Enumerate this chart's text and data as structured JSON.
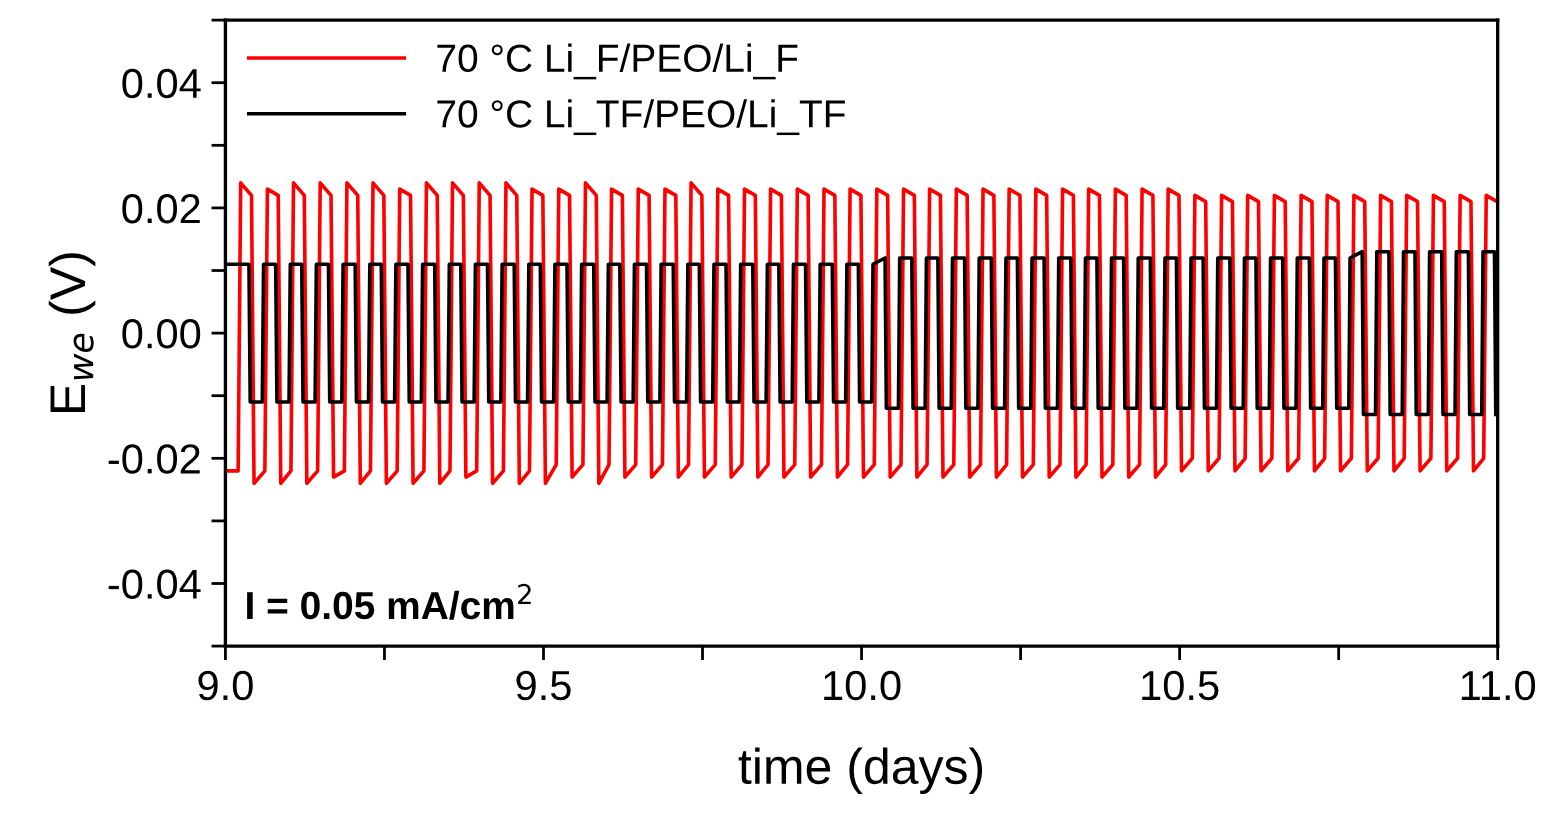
{
  "chart_data": {
    "type": "line",
    "xlabel": "time (days)",
    "ylabel": "E$_{we}$ (V)",
    "xlim": [
      9.0,
      11.0
    ],
    "ylim": [
      -0.05,
      0.05
    ],
    "xticks": [
      {
        "value": 9.0,
        "label": "9.0"
      },
      {
        "value": 9.25,
        "label": null
      },
      {
        "value": 9.5,
        "label": "9.5"
      },
      {
        "value": 9.75,
        "label": null
      },
      {
        "value": 10.0,
        "label": "10.0"
      },
      {
        "value": 10.25,
        "label": null
      },
      {
        "value": 10.5,
        "label": "10.5"
      },
      {
        "value": 10.75,
        "label": null
      },
      {
        "value": 11.0,
        "label": "11.0"
      }
    ],
    "yticks": [
      {
        "value": -0.05,
        "label": null
      },
      {
        "value": -0.04,
        "label": "-0.04"
      },
      {
        "value": -0.03,
        "label": null
      },
      {
        "value": -0.02,
        "label": "-0.02"
      },
      {
        "value": -0.01,
        "label": null
      },
      {
        "value": 0.0,
        "label": "0.00"
      },
      {
        "value": 0.01,
        "label": null
      },
      {
        "value": 0.02,
        "label": "0.02"
      },
      {
        "value": 0.03,
        "label": null
      },
      {
        "value": 0.04,
        "label": "0.04"
      },
      {
        "value": 0.05,
        "label": null
      }
    ],
    "grid": false,
    "legend": "top left",
    "marker": "none",
    "line_style": "solid",
    "annotations": [
      "I = 0.05 mA/cm$^{2}$"
    ],
    "series": [
      {
        "name": "70 °C Li_F/PEO/Li_F",
        "color": "#ff0000",
        "x": [
          9.0,
          9.02,
          9.024,
          9.041,
          9.045,
          9.062,
          9.066,
          9.083,
          9.087,
          9.103,
          9.107,
          9.124,
          9.128,
          9.145,
          9.149,
          9.166,
          9.17,
          9.187,
          9.191,
          9.208,
          9.212,
          9.228,
          9.232,
          9.249,
          9.253,
          9.27,
          9.274,
          9.291,
          9.295,
          9.312,
          9.316,
          9.333,
          9.337,
          9.353,
          9.357,
          9.374,
          9.378,
          9.395,
          9.399,
          9.416,
          9.42,
          9.437,
          9.441,
          9.458,
          9.462,
          9.478,
          9.482,
          9.499,
          9.503,
          9.52,
          9.524,
          9.541,
          9.545,
          9.562,
          9.566,
          9.583,
          9.587,
          9.603,
          9.607,
          9.624,
          9.628,
          9.645,
          9.649,
          9.666,
          9.67,
          9.687,
          9.691,
          9.708,
          9.712,
          9.728,
          9.732,
          9.749,
          9.753,
          9.77,
          9.774,
          9.791,
          9.795,
          9.812,
          9.816,
          9.833,
          9.837,
          9.853,
          9.857,
          9.874,
          9.878,
          9.895,
          9.899,
          9.916,
          9.92,
          9.937,
          9.941,
          9.958,
          9.962,
          9.978,
          9.982,
          9.999,
          10.003,
          10.02,
          10.024,
          10.041,
          10.045,
          10.062,
          10.066,
          10.083,
          10.087,
          10.103,
          10.107,
          10.124,
          10.128,
          10.145,
          10.149,
          10.166,
          10.17,
          10.187,
          10.191,
          10.208,
          10.212,
          10.228,
          10.232,
          10.249,
          10.253,
          10.27,
          10.274,
          10.291,
          10.295,
          10.312,
          10.316,
          10.333,
          10.337,
          10.353,
          10.357,
          10.374,
          10.378,
          10.395,
          10.399,
          10.416,
          10.42,
          10.437,
          10.441,
          10.458,
          10.462,
          10.478,
          10.482,
          10.499,
          10.503,
          10.52,
          10.524,
          10.541,
          10.545,
          10.562,
          10.566,
          10.583,
          10.587,
          10.603,
          10.607,
          10.624,
          10.628,
          10.645,
          10.649,
          10.666,
          10.67,
          10.687,
          10.691,
          10.708,
          10.712,
          10.728,
          10.732,
          10.749,
          10.753,
          10.77,
          10.774,
          10.791,
          10.795,
          10.812,
          10.816,
          10.833,
          10.837,
          10.853,
          10.857,
          10.874,
          10.878,
          10.895,
          10.899,
          10.916,
          10.92,
          10.937,
          10.941,
          10.958,
          10.962,
          10.978,
          10.982,
          10.999
        ],
        "values": [
          -0.022,
          -0.022,
          0.024,
          0.022,
          -0.024,
          -0.022,
          0.023,
          0.022,
          -0.024,
          -0.022,
          0.024,
          0.022,
          -0.024,
          -0.022,
          0.024,
          0.022,
          -0.023,
          -0.022,
          0.024,
          0.022,
          -0.024,
          -0.022,
          0.024,
          0.022,
          -0.024,
          -0.022,
          0.023,
          0.022,
          -0.024,
          -0.022,
          0.024,
          0.022,
          -0.024,
          -0.022,
          0.024,
          0.022,
          -0.023,
          -0.022,
          0.024,
          0.022,
          -0.024,
          -0.022,
          0.024,
          0.022,
          -0.024,
          -0.022,
          0.023,
          0.022,
          -0.024,
          -0.021,
          0.023,
          0.022,
          -0.023,
          -0.021,
          0.024,
          0.022,
          -0.024,
          -0.021,
          0.023,
          0.022,
          -0.023,
          -0.021,
          0.023,
          0.022,
          -0.023,
          -0.021,
          0.023,
          0.022,
          -0.023,
          -0.021,
          0.024,
          0.022,
          -0.023,
          -0.021,
          0.023,
          0.022,
          -0.023,
          -0.021,
          0.023,
          0.022,
          -0.023,
          -0.021,
          0.023,
          0.022,
          -0.023,
          -0.021,
          0.023,
          0.022,
          -0.023,
          -0.021,
          0.023,
          0.022,
          -0.023,
          -0.021,
          0.023,
          0.022,
          -0.023,
          -0.021,
          0.023,
          0.022,
          -0.023,
          -0.021,
          0.023,
          0.022,
          -0.023,
          -0.021,
          0.023,
          0.022,
          -0.023,
          -0.021,
          0.023,
          0.022,
          -0.023,
          -0.021,
          0.023,
          0.022,
          -0.023,
          -0.021,
          0.023,
          0.022,
          -0.023,
          -0.021,
          0.023,
          0.022,
          -0.023,
          -0.021,
          0.023,
          0.022,
          -0.023,
          -0.021,
          0.023,
          0.022,
          -0.023,
          -0.021,
          0.023,
          0.022,
          -0.023,
          -0.021,
          0.023,
          0.022,
          -0.023,
          -0.021,
          0.023,
          0.022,
          -0.022,
          -0.02,
          0.022,
          0.021,
          -0.022,
          -0.02,
          0.022,
          0.021,
          -0.022,
          -0.02,
          0.022,
          0.021,
          -0.022,
          -0.02,
          0.022,
          0.021,
          -0.022,
          -0.02,
          0.022,
          0.021,
          -0.022,
          -0.02,
          0.022,
          0.021,
          -0.022,
          -0.02,
          0.022,
          0.021,
          -0.022,
          -0.02,
          0.022,
          0.021,
          -0.022,
          -0.02,
          0.022,
          0.021,
          -0.022,
          -0.02,
          0.022,
          0.021,
          -0.022,
          -0.02,
          0.022,
          0.021,
          -0.022,
          -0.02,
          0.022,
          0.021
        ]
      },
      {
        "name": "70 °C Li_TF/PEO/Li_TF",
        "color": "#000000",
        "x": [
          9.0,
          9.037,
          9.039,
          9.058,
          9.06,
          9.079,
          9.081,
          9.1,
          9.102,
          9.12,
          9.122,
          9.141,
          9.143,
          9.162,
          9.164,
          9.183,
          9.185,
          9.204,
          9.206,
          9.225,
          9.227,
          9.245,
          9.247,
          9.266,
          9.268,
          9.287,
          9.289,
          9.308,
          9.31,
          9.329,
          9.331,
          9.35,
          9.352,
          9.37,
          9.372,
          9.391,
          9.393,
          9.412,
          9.414,
          9.433,
          9.435,
          9.454,
          9.456,
          9.475,
          9.477,
          9.495,
          9.497,
          9.516,
          9.518,
          9.537,
          9.539,
          9.558,
          9.56,
          9.579,
          9.581,
          9.6,
          9.602,
          9.62,
          9.622,
          9.641,
          9.643,
          9.662,
          9.664,
          9.683,
          9.685,
          9.704,
          9.706,
          9.725,
          9.727,
          9.745,
          9.747,
          9.766,
          9.768,
          9.787,
          9.789,
          9.808,
          9.81,
          9.829,
          9.831,
          9.85,
          9.852,
          9.87,
          9.872,
          9.891,
          9.893,
          9.912,
          9.914,
          9.933,
          9.935,
          9.954,
          9.956,
          9.975,
          9.977,
          9.995,
          9.997,
          10.016,
          10.018,
          10.037,
          10.039,
          10.058,
          10.06,
          10.079,
          10.081,
          10.1,
          10.102,
          10.12,
          10.122,
          10.141,
          10.143,
          10.162,
          10.164,
          10.183,
          10.185,
          10.204,
          10.206,
          10.225,
          10.227,
          10.245,
          10.247,
          10.266,
          10.268,
          10.287,
          10.289,
          10.308,
          10.31,
          10.329,
          10.331,
          10.35,
          10.352,
          10.37,
          10.372,
          10.391,
          10.393,
          10.412,
          10.414,
          10.433,
          10.435,
          10.454,
          10.456,
          10.475,
          10.477,
          10.495,
          10.497,
          10.516,
          10.518,
          10.537,
          10.539,
          10.558,
          10.56,
          10.579,
          10.581,
          10.6,
          10.602,
          10.62,
          10.622,
          10.641,
          10.643,
          10.662,
          10.664,
          10.683,
          10.685,
          10.704,
          10.706,
          10.725,
          10.727,
          10.745,
          10.747,
          10.766,
          10.768,
          10.787,
          10.789,
          10.808,
          10.81,
          10.829,
          10.831,
          10.85,
          10.852,
          10.87,
          10.872,
          10.891,
          10.893,
          10.912,
          10.914,
          10.933,
          10.935,
          10.954,
          10.956,
          10.975,
          10.977,
          10.995,
          10.997
        ],
        "values": [
          0.011,
          0.011,
          -0.011,
          -0.011,
          0.011,
          0.011,
          -0.011,
          -0.011,
          0.011,
          0.011,
          -0.011,
          -0.011,
          0.011,
          0.011,
          -0.011,
          -0.011,
          0.011,
          0.011,
          -0.011,
          -0.011,
          0.011,
          0.011,
          -0.011,
          -0.011,
          0.011,
          0.011,
          -0.011,
          -0.011,
          0.011,
          0.011,
          -0.011,
          -0.011,
          0.011,
          0.011,
          -0.011,
          -0.011,
          0.011,
          0.011,
          -0.011,
          -0.011,
          0.011,
          0.011,
          -0.011,
          -0.011,
          0.011,
          0.011,
          -0.011,
          -0.011,
          0.011,
          0.011,
          -0.011,
          -0.011,
          0.011,
          0.011,
          -0.011,
          -0.011,
          0.011,
          0.011,
          -0.011,
          -0.011,
          0.011,
          0.011,
          -0.011,
          -0.011,
          0.011,
          0.011,
          -0.011,
          -0.011,
          0.011,
          0.011,
          -0.011,
          -0.011,
          0.011,
          0.011,
          -0.011,
          -0.011,
          0.011,
          0.011,
          -0.011,
          -0.011,
          0.011,
          0.011,
          -0.011,
          -0.011,
          0.011,
          0.011,
          -0.011,
          -0.011,
          0.011,
          0.011,
          -0.011,
          -0.011,
          0.011,
          0.011,
          -0.011,
          -0.011,
          0.011,
          0.012,
          -0.012,
          -0.012,
          0.012,
          0.012,
          -0.012,
          -0.012,
          0.012,
          0.012,
          -0.012,
          -0.012,
          0.012,
          0.012,
          -0.012,
          -0.012,
          0.012,
          0.012,
          -0.012,
          -0.012,
          0.012,
          0.012,
          -0.012,
          -0.012,
          0.012,
          0.012,
          -0.012,
          -0.012,
          0.012,
          0.012,
          -0.012,
          -0.012,
          0.012,
          0.012,
          -0.012,
          -0.012,
          0.012,
          0.012,
          -0.012,
          -0.012,
          0.012,
          0.012,
          -0.012,
          -0.012,
          0.012,
          0.012,
          -0.012,
          -0.012,
          0.012,
          0.012,
          -0.012,
          -0.012,
          0.012,
          0.012,
          -0.012,
          -0.012,
          0.012,
          0.012,
          -0.012,
          -0.012,
          0.012,
          0.012,
          -0.012,
          -0.012,
          0.012,
          0.012,
          -0.012,
          -0.012,
          0.012,
          0.012,
          -0.012,
          -0.012,
          0.012,
          0.013,
          -0.013,
          -0.013,
          0.013,
          0.013,
          -0.013,
          -0.013,
          0.013,
          0.013,
          -0.013,
          -0.013,
          0.013,
          0.013,
          -0.013,
          -0.013,
          0.013,
          0.013,
          -0.013,
          -0.013,
          0.013,
          0.013,
          -0.013
        ]
      }
    ]
  }
}
